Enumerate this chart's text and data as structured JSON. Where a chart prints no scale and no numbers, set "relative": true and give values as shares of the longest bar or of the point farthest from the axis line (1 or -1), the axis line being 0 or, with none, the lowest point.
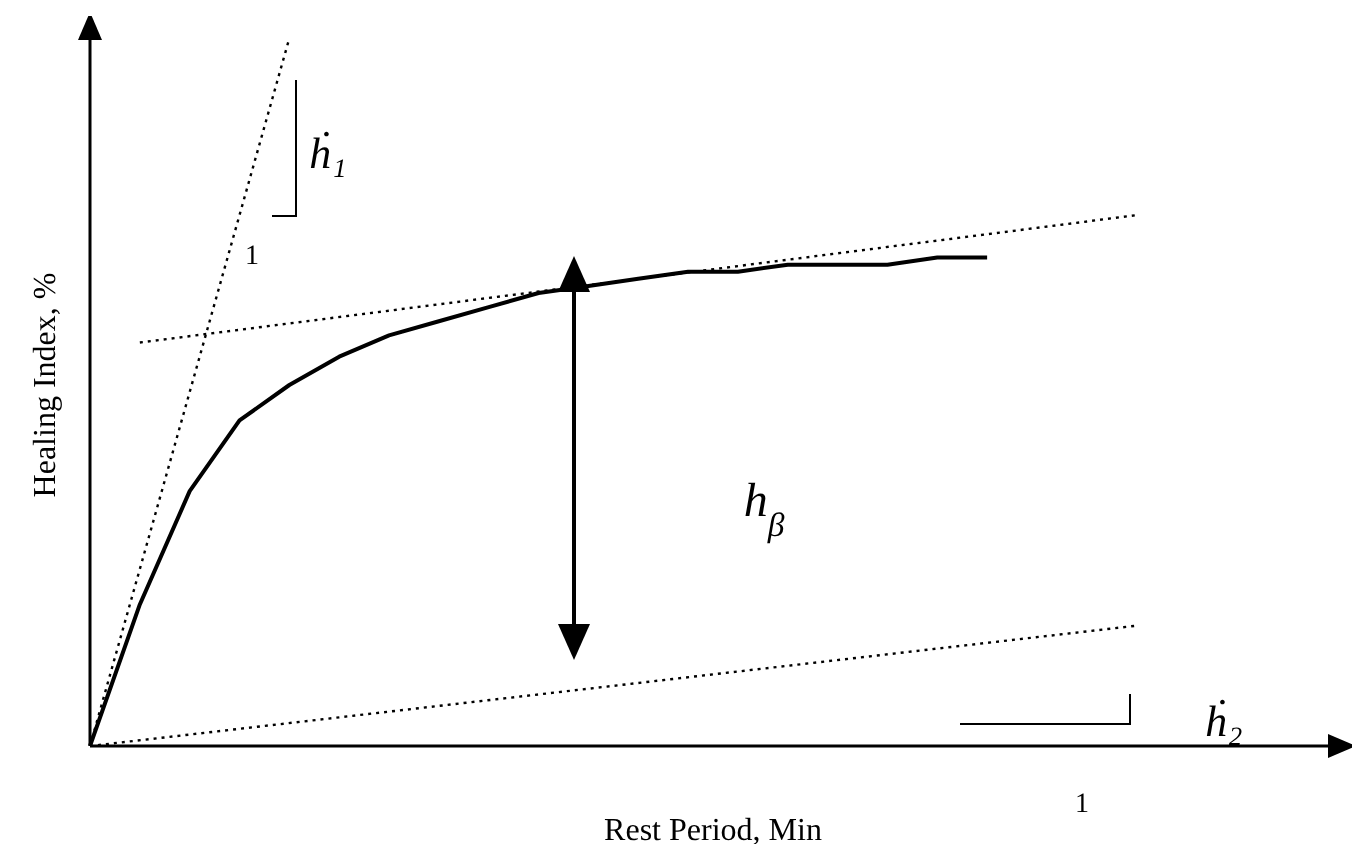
{
  "chart_data": {
    "type": "line",
    "relative": true,
    "xlabel": "Rest Period, Min",
    "ylabel": "Healing Index, %",
    "categories": [
      null,
      null,
      null,
      null,
      null,
      null,
      null,
      null,
      null,
      null,
      null,
      null,
      null,
      null,
      null,
      null,
      null,
      null,
      null,
      null,
      null,
      null,
      null,
      null,
      null,
      null
    ],
    "series": [
      {
        "color": "#000000",
        "line_style": "solid",
        "values": [
          0,
          0.2,
          0.36,
          0.46,
          0.51,
          0.55,
          0.58,
          0.6,
          0.62,
          0.64,
          0.65,
          0.66,
          0.67,
          0.67,
          0.68,
          0.68,
          0.68,
          0.69,
          0.69,
          null,
          null,
          null,
          null,
          null,
          null,
          null
        ]
      },
      {
        "color": "#000000",
        "line_style": "dotted",
        "values": [
          0,
          null,
          null,
          null,
          1,
          null,
          null,
          null,
          null,
          null,
          null,
          null,
          null,
          null,
          null,
          null,
          null,
          null,
          null,
          null,
          null,
          null,
          null,
          null,
          null,
          null
        ]
      },
      {
        "color": "#000000",
        "line_style": "dotted",
        "values": [
          null,
          0.57,
          null,
          null,
          null,
          null,
          null,
          null,
          null,
          null,
          null,
          null,
          null,
          null,
          null,
          null,
          null,
          null,
          null,
          null,
          null,
          0.75,
          null,
          null,
          null,
          null
        ]
      },
      {
        "color": "#000000",
        "line_style": "dotted",
        "values": [
          0,
          null,
          null,
          null,
          null,
          null,
          null,
          null,
          null,
          null,
          null,
          null,
          null,
          null,
          null,
          null,
          null,
          null,
          null,
          null,
          null,
          0.17,
          null,
          null,
          null,
          null
        ]
      }
    ],
    "annotations": [
      "ḣ₁",
      "1",
      "h$_{β}$",
      "ḣ₂",
      "1"
    ],
    "marker": "none"
  }
}
